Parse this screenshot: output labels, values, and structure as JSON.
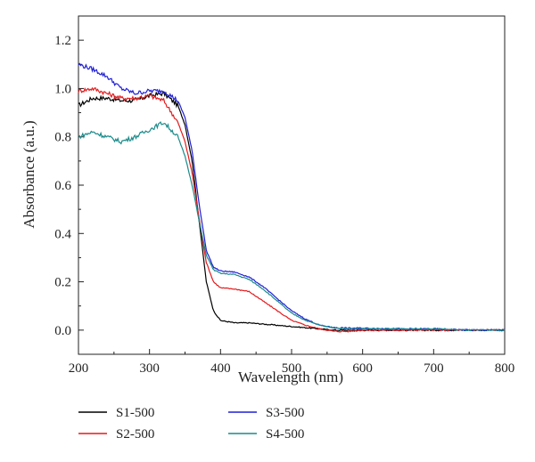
{
  "chart_data": {
    "type": "line",
    "xlabel": "Wavelength (nm)",
    "ylabel": "Absorbance (a.u.)",
    "xlim": [
      200,
      800
    ],
    "ylim": [
      -0.1,
      1.3
    ],
    "xticks": [
      "200",
      "300",
      "400",
      "500",
      "600",
      "700",
      "800"
    ],
    "yticks": [
      "0.0",
      "0.2",
      "0.4",
      "0.6",
      "0.8",
      "1.0",
      "1.2"
    ],
    "grid": false,
    "legend_position": "bottom",
    "x": [
      200,
      220,
      240,
      260,
      280,
      300,
      320,
      340,
      350,
      360,
      370,
      380,
      390,
      400,
      420,
      440,
      460,
      480,
      500,
      520,
      540,
      560,
      580,
      600,
      650,
      700,
      750,
      800
    ],
    "series": [
      {
        "name": "S1-500",
        "color": "#000000",
        "values": [
          0.93,
          0.96,
          0.96,
          0.95,
          0.95,
          0.97,
          0.98,
          0.93,
          0.85,
          0.7,
          0.45,
          0.2,
          0.08,
          0.04,
          0.03,
          0.03,
          0.025,
          0.02,
          0.015,
          0.01,
          0.005,
          0.0,
          0.0,
          0.0,
          0.0,
          0.0,
          0.0,
          0.0
        ]
      },
      {
        "name": "S2-500",
        "color": "#e31a1c",
        "values": [
          0.99,
          1.0,
          0.98,
          0.96,
          0.96,
          0.97,
          0.95,
          0.86,
          0.78,
          0.65,
          0.46,
          0.28,
          0.2,
          0.175,
          0.17,
          0.16,
          0.12,
          0.08,
          0.04,
          0.02,
          0.005,
          -0.005,
          -0.005,
          0.0,
          0.0,
          0.0,
          0.0,
          0.0
        ]
      },
      {
        "name": "S3-500",
        "color": "#1f1fd6",
        "values": [
          1.1,
          1.08,
          1.05,
          1.0,
          0.98,
          0.99,
          0.99,
          0.95,
          0.88,
          0.74,
          0.52,
          0.33,
          0.26,
          0.245,
          0.24,
          0.22,
          0.18,
          0.13,
          0.08,
          0.045,
          0.02,
          0.01,
          0.008,
          0.008,
          0.005,
          0.005,
          0.0,
          0.0
        ]
      },
      {
        "name": "S4-500",
        "color": "#1a8a8a",
        "values": [
          0.8,
          0.82,
          0.8,
          0.78,
          0.8,
          0.83,
          0.86,
          0.8,
          0.72,
          0.6,
          0.45,
          0.31,
          0.25,
          0.235,
          0.23,
          0.21,
          0.17,
          0.12,
          0.07,
          0.04,
          0.02,
          0.01,
          0.005,
          0.005,
          0.005,
          0.005,
          0.0,
          0.0
        ]
      }
    ]
  }
}
